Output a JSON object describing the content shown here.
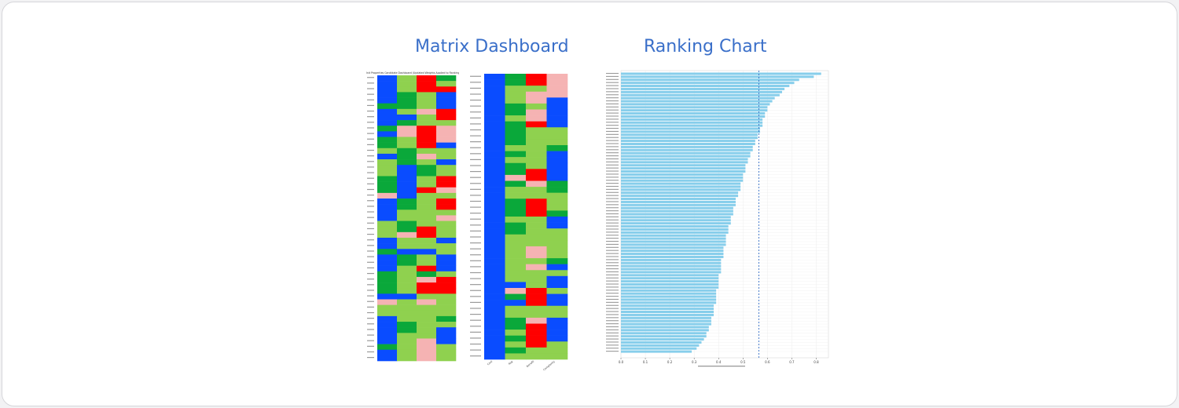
{
  "headings": {
    "matrix": "Matrix Dashboard",
    "ranking": "Ranking Chart"
  },
  "colors": {
    "accent_heading": "#3a6fc9",
    "blue": "#0a4cff",
    "green_dark": "#0aa83a",
    "green_light": "#8fd14f",
    "red": "#ff0000",
    "pink": "#f5b3b3",
    "bar": "#87ceeb",
    "threshold": "#1f5fbf"
  },
  "matrix_1": {
    "title": "Unit Properties Candidate Dashboard (Updated Weights Applied to Rankings)",
    "columns": 4,
    "rows": [
      [
        "B",
        "L",
        "R",
        "D"
      ],
      [
        "B",
        "L",
        "R",
        "L"
      ],
      [
        "B",
        "L",
        "R",
        "R"
      ],
      [
        "B",
        "D",
        "L",
        "B"
      ],
      [
        "B",
        "D",
        "L",
        "B"
      ],
      [
        "D",
        "D",
        "L",
        "B"
      ],
      [
        "B",
        "L",
        "P",
        "R"
      ],
      [
        "B",
        "B",
        "L",
        "R"
      ],
      [
        "B",
        "D",
        "L",
        "L"
      ],
      [
        "D",
        "P",
        "R",
        "P"
      ],
      [
        "B",
        "P",
        "R",
        "P"
      ],
      [
        "D",
        "L",
        "R",
        "P"
      ],
      [
        "D",
        "L",
        "R",
        "B"
      ],
      [
        "L",
        "D",
        "L",
        "L"
      ],
      [
        "B",
        "D",
        "P",
        "L"
      ],
      [
        "L",
        "D",
        "L",
        "B"
      ],
      [
        "L",
        "B",
        "D",
        "L"
      ],
      [
        "L",
        "B",
        "D",
        "L"
      ],
      [
        "D",
        "B",
        "L",
        "R"
      ],
      [
        "D",
        "B",
        "L",
        "R"
      ],
      [
        "D",
        "B",
        "R",
        "P"
      ],
      [
        "P",
        "B",
        "L",
        "L"
      ],
      [
        "B",
        "D",
        "L",
        "R"
      ],
      [
        "B",
        "D",
        "L",
        "R"
      ],
      [
        "B",
        "L",
        "L",
        "L"
      ],
      [
        "B",
        "L",
        "L",
        "P"
      ],
      [
        "L",
        "D",
        "L",
        "L"
      ],
      [
        "L",
        "D",
        "R",
        "L"
      ],
      [
        "L",
        "P",
        "R",
        "L"
      ],
      [
        "B",
        "L",
        "L",
        "B"
      ],
      [
        "B",
        "L",
        "L",
        "L"
      ],
      [
        "D",
        "B",
        "B",
        "L"
      ],
      [
        "B",
        "D",
        "L",
        "B"
      ],
      [
        "B",
        "D",
        "L",
        "B"
      ],
      [
        "B",
        "L",
        "R",
        "B"
      ],
      [
        "D",
        "L",
        "D",
        "L"
      ],
      [
        "D",
        "L",
        "P",
        "R"
      ],
      [
        "D",
        "L",
        "R",
        "R"
      ],
      [
        "D",
        "L",
        "R",
        "R"
      ],
      [
        "B",
        "B",
        "L",
        "L"
      ],
      [
        "P",
        "L",
        "P",
        "L"
      ],
      [
        "L",
        "L",
        "L",
        "L"
      ],
      [
        "L",
        "L",
        "L",
        "L"
      ],
      [
        "B",
        "L",
        "L",
        "D"
      ],
      [
        "B",
        "D",
        "L",
        "L"
      ],
      [
        "B",
        "D",
        "L",
        "B"
      ],
      [
        "B",
        "L",
        "L",
        "B"
      ],
      [
        "B",
        "L",
        "P",
        "B"
      ],
      [
        "D",
        "L",
        "P",
        "L"
      ],
      [
        "B",
        "L",
        "P",
        "L"
      ],
      [
        "B",
        "L",
        "P",
        "L"
      ]
    ]
  },
  "matrix_2": {
    "columns": 4,
    "column_labels": [
      "Cost",
      "Risk",
      "Benefit",
      "Complexity"
    ],
    "rows": [
      [
        "B",
        "D",
        "R",
        "P"
      ],
      [
        "B",
        "D",
        "R",
        "P"
      ],
      [
        "B",
        "L",
        "L",
        "P"
      ],
      [
        "B",
        "L",
        "P",
        "P"
      ],
      [
        "B",
        "L",
        "P",
        "B"
      ],
      [
        "B",
        "D",
        "L",
        "B"
      ],
      [
        "B",
        "D",
        "P",
        "B"
      ],
      [
        "B",
        "L",
        "P",
        "B"
      ],
      [
        "B",
        "D",
        "R",
        "B"
      ],
      [
        "B",
        "D",
        "L",
        "L"
      ],
      [
        "B",
        "D",
        "L",
        "L"
      ],
      [
        "B",
        "D",
        "L",
        "L"
      ],
      [
        "B",
        "L",
        "L",
        "D"
      ],
      [
        "B",
        "D",
        "L",
        "B"
      ],
      [
        "B",
        "L",
        "L",
        "B"
      ],
      [
        "B",
        "D",
        "L",
        "B"
      ],
      [
        "B",
        "D",
        "R",
        "B"
      ],
      [
        "B",
        "P",
        "R",
        "B"
      ],
      [
        "B",
        "D",
        "P",
        "D"
      ],
      [
        "B",
        "L",
        "L",
        "D"
      ],
      [
        "B",
        "L",
        "L",
        "L"
      ],
      [
        "B",
        "D",
        "R",
        "L"
      ],
      [
        "B",
        "D",
        "R",
        "L"
      ],
      [
        "B",
        "D",
        "R",
        "D"
      ],
      [
        "B",
        "L",
        "L",
        "B"
      ],
      [
        "B",
        "D",
        "L",
        "B"
      ],
      [
        "B",
        "D",
        "L",
        "L"
      ],
      [
        "B",
        "L",
        "L",
        "L"
      ],
      [
        "B",
        "L",
        "L",
        "L"
      ],
      [
        "B",
        "L",
        "P",
        "L"
      ],
      [
        "B",
        "L",
        "P",
        "L"
      ],
      [
        "B",
        "L",
        "L",
        "D"
      ],
      [
        "B",
        "L",
        "P",
        "B"
      ],
      [
        "B",
        "L",
        "L",
        "L"
      ],
      [
        "B",
        "L",
        "L",
        "B"
      ],
      [
        "B",
        "B",
        "L",
        "B"
      ],
      [
        "B",
        "P",
        "R",
        "L"
      ],
      [
        "B",
        "D",
        "R",
        "B"
      ],
      [
        "B",
        "B",
        "R",
        "B"
      ],
      [
        "B",
        "L",
        "L",
        "L"
      ],
      [
        "B",
        "L",
        "L",
        "L"
      ],
      [
        "B",
        "D",
        "P",
        "B"
      ],
      [
        "B",
        "D",
        "R",
        "B"
      ],
      [
        "B",
        "L",
        "R",
        "B"
      ],
      [
        "B",
        "D",
        "R",
        "B"
      ],
      [
        "B",
        "L",
        "R",
        "L"
      ],
      [
        "B",
        "D",
        "L",
        "L"
      ],
      [
        "B",
        "L",
        "L",
        "L"
      ]
    ]
  },
  "chart_data": {
    "type": "bar",
    "orientation": "horizontal",
    "xlim": [
      0,
      0.85
    ],
    "xticks": [
      "0.0",
      "0.1",
      "0.2",
      "0.3",
      "0.4",
      "0.5",
      "0.6",
      "0.7",
      "0.8"
    ],
    "threshold": 0.565,
    "values": [
      0.82,
      0.79,
      0.73,
      0.71,
      0.69,
      0.67,
      0.66,
      0.65,
      0.63,
      0.62,
      0.61,
      0.6,
      0.6,
      0.59,
      0.59,
      0.58,
      0.58,
      0.58,
      0.57,
      0.57,
      0.56,
      0.56,
      0.55,
      0.55,
      0.54,
      0.54,
      0.53,
      0.53,
      0.52,
      0.52,
      0.51,
      0.51,
      0.51,
      0.5,
      0.5,
      0.5,
      0.49,
      0.49,
      0.49,
      0.48,
      0.48,
      0.47,
      0.47,
      0.47,
      0.46,
      0.46,
      0.46,
      0.45,
      0.45,
      0.45,
      0.44,
      0.44,
      0.44,
      0.43,
      0.43,
      0.43,
      0.43,
      0.42,
      0.42,
      0.42,
      0.42,
      0.41,
      0.41,
      0.41,
      0.41,
      0.41,
      0.4,
      0.4,
      0.4,
      0.4,
      0.4,
      0.39,
      0.39,
      0.39,
      0.39,
      0.39,
      0.38,
      0.38,
      0.38,
      0.38,
      0.37,
      0.37,
      0.37,
      0.36,
      0.36,
      0.35,
      0.35,
      0.34,
      0.33,
      0.32,
      0.31,
      0.29
    ]
  }
}
